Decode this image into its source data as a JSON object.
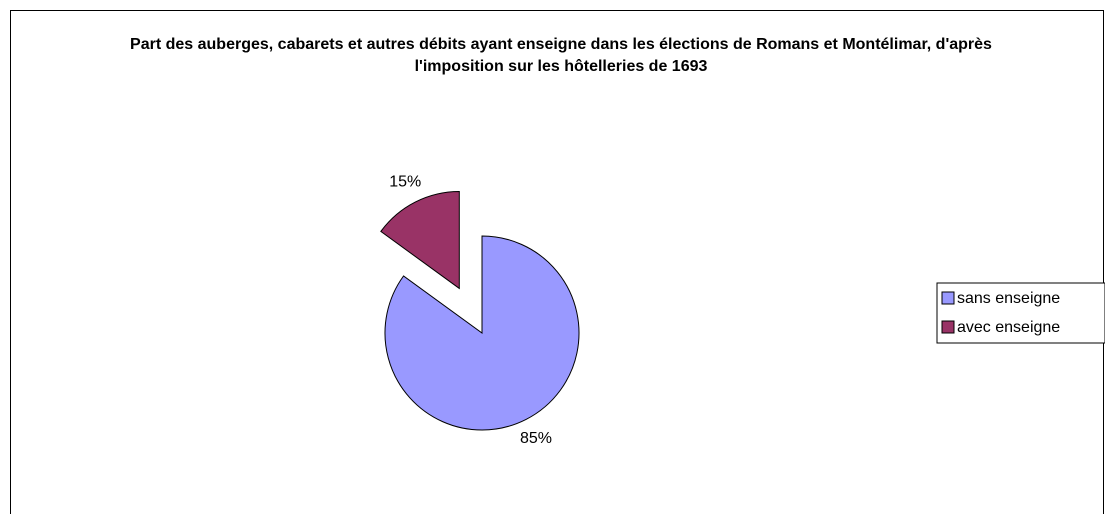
{
  "chart_data": {
    "type": "pie",
    "title": "Part des auberges, cabarets et autres débits ayant enseigne dans les élections de Romans et Montélimar, d'après l'imposition sur les hôtelleries de 1693",
    "categories": [
      "sans enseigne",
      "avec enseigne"
    ],
    "values": [
      85,
      15
    ],
    "value_labels": [
      "85%",
      "15%"
    ],
    "colors": [
      "#9999ff",
      "#993366"
    ],
    "exploded": [
      false,
      true
    ],
    "legend": "right"
  }
}
